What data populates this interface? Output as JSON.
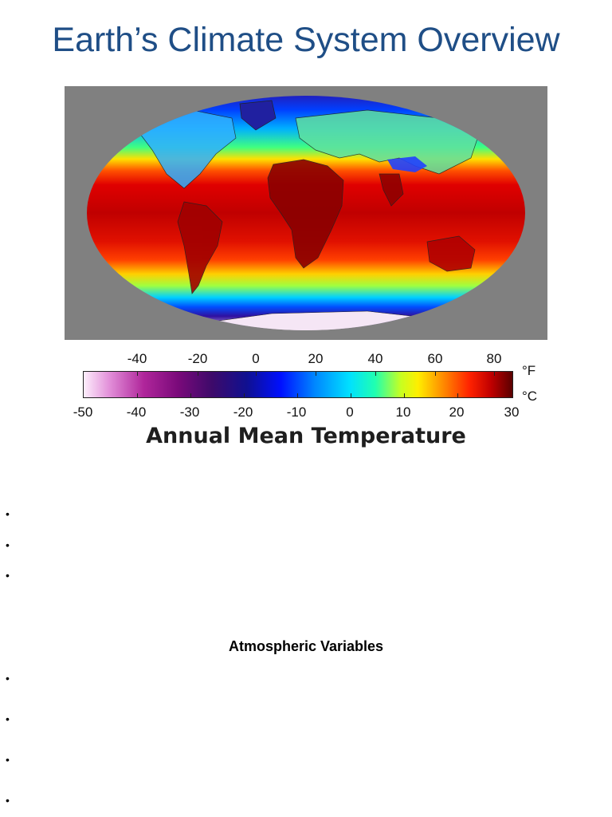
{
  "title": "Earth’s Climate System Overview",
  "figure": {
    "colorbar_title": "Annual Mean Temperature",
    "unit_f": "°F",
    "unit_c": "°C",
    "fahrenheit_ticks": [
      "-40",
      "-20",
      "0",
      "20",
      "40",
      "60",
      "80"
    ],
    "celsius_ticks": [
      "-50",
      "-40",
      "-30",
      "-20",
      "-10",
      "0",
      "10",
      "20",
      "30"
    ],
    "colors": {
      "map_background": "#808080",
      "cold": "#fdeefc",
      "hot": "#5a0000"
    }
  },
  "list_top": {
    "items": [
      "",
      "",
      ""
    ]
  },
  "section": {
    "heading": "Atmospheric Variables",
    "items": [
      "",
      "",
      "",
      ""
    ]
  }
}
